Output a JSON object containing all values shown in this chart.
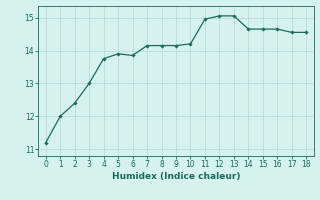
{
  "x": [
    0,
    1,
    2,
    3,
    4,
    5,
    6,
    7,
    8,
    9,
    10,
    11,
    12,
    13,
    14,
    15,
    16,
    17,
    18
  ],
  "y": [
    11.2,
    12.0,
    12.4,
    13.0,
    13.75,
    13.9,
    13.85,
    14.15,
    14.15,
    14.15,
    14.2,
    14.95,
    15.05,
    15.05,
    14.65,
    14.65,
    14.65,
    14.55,
    14.55
  ],
  "line_color": "#1a6b5a",
  "marker": "D",
  "marker_size": 1.8,
  "bg_color": "#d5f2ec",
  "grid_color": "#b8ddd6",
  "xlabel": "Humidex (Indice chaleur)",
  "xlabel_fontsize": 6.5,
  "tick_fontsize": 5.5,
  "ylim": [
    10.8,
    15.35
  ],
  "xlim": [
    -0.5,
    18.5
  ],
  "yticks": [
    11,
    12,
    13,
    14,
    15
  ],
  "xticks": [
    0,
    1,
    2,
    3,
    4,
    5,
    6,
    7,
    8,
    9,
    10,
    11,
    12,
    13,
    14,
    15,
    16,
    17,
    18
  ]
}
